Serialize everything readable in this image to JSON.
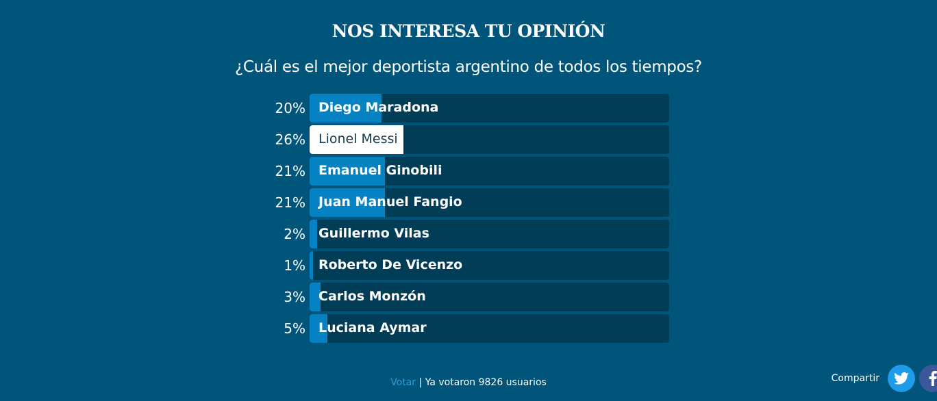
{
  "poll": {
    "title": "NOS INTERESA TU OPINIÓN",
    "question": "¿Cuál es el mejor deportista argentino de todos los tiempos?",
    "options": [
      {
        "label": "Diego Maradona",
        "percent_label": "20%",
        "percent": 20,
        "selected": false
      },
      {
        "label": "Lionel Messi",
        "percent_label": "26%",
        "percent": 26,
        "selected": true
      },
      {
        "label": "Emanuel Ginobili",
        "percent_label": "21%",
        "percent": 21,
        "selected": false
      },
      {
        "label": "Juan Manuel Fangio",
        "percent_label": "21%",
        "percent": 21,
        "selected": false
      },
      {
        "label": "Guillermo Vilas",
        "percent_label": "2%",
        "percent": 2,
        "selected": false
      },
      {
        "label": "Roberto De Vicenzo",
        "percent_label": "1%",
        "percent": 1,
        "selected": false
      },
      {
        "label": "Carlos Monzón",
        "percent_label": "3%",
        "percent": 3,
        "selected": false
      },
      {
        "label": "Luciana Aymar",
        "percent_label": "5%",
        "percent": 5,
        "selected": false
      }
    ]
  },
  "footer": {
    "vote_label": "Votar",
    "votes_text": " | Ya votaron 9826 usuarios"
  },
  "share": {
    "label": "Compartir",
    "buttons": [
      {
        "name": "twitter",
        "icon": "twitter-icon",
        "color": "#1e9be9"
      },
      {
        "name": "facebook",
        "icon": "facebook-icon",
        "color": "#3b5998"
      }
    ]
  },
  "colors": {
    "background": "#01557a",
    "bar_track": "#023d58",
    "bar_fill": "#0582c2",
    "selected_fill": "#ffffff",
    "link": "#2a9ddb"
  }
}
